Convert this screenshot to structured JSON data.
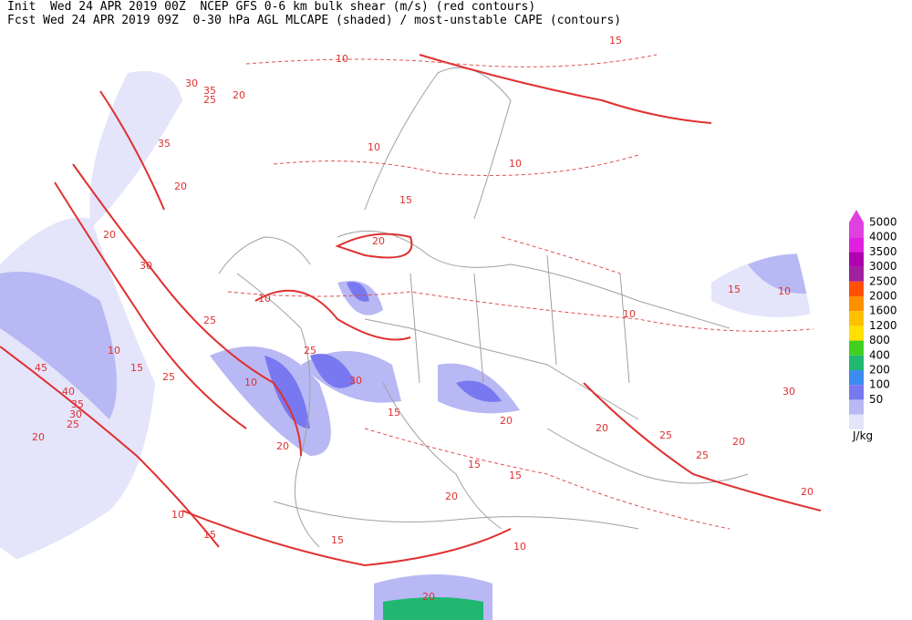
{
  "header": {
    "line1": "Init  Wed 24 APR 2019 00Z  NCEP GFS 0-6 km bulk shear (m/s) (red contours)",
    "line2": "Fcst Wed 24 APR 2019 09Z  0-30 hPa AGL MLCAPE (shaded) / most-unstable CAPE (contours)"
  },
  "legend": {
    "unit": "J/kg",
    "levels": [
      {
        "label": "5000",
        "color": "#e040e0"
      },
      {
        "label": "4000",
        "color": "#e020e0"
      },
      {
        "label": "3500",
        "color": "#b000b0"
      },
      {
        "label": "3000",
        "color": "#a020a0"
      },
      {
        "label": "2500",
        "color": "#ff5000"
      },
      {
        "label": "2000",
        "color": "#ff9000"
      },
      {
        "label": "1600",
        "color": "#ffc000"
      },
      {
        "label": "1200",
        "color": "#ffe000"
      },
      {
        "label": "800",
        "color": "#40d020"
      },
      {
        "label": "400",
        "color": "#20b870"
      },
      {
        "label": "200",
        "color": "#3c8cf0"
      },
      {
        "label": "100",
        "color": "#7878f0"
      },
      {
        "label": "50",
        "color": "#b8b8f4"
      }
    ],
    "bottom_color": "#e4e4fa"
  },
  "contour_labels": [
    "15",
    "10",
    "30",
    "35",
    "25",
    "20",
    "35",
    "20",
    "20",
    "30",
    "25",
    "10",
    "45",
    "40",
    "35",
    "30",
    "25",
    "20",
    "10",
    "15",
    "25",
    "10",
    "10",
    "15",
    "20",
    "25",
    "20",
    "30",
    "15",
    "20",
    "25",
    "10",
    "15",
    "10",
    "15",
    "20",
    "15",
    "15",
    "10",
    "10",
    "20",
    "25",
    "20",
    "30",
    "20",
    "15",
    "10",
    "20"
  ]
}
